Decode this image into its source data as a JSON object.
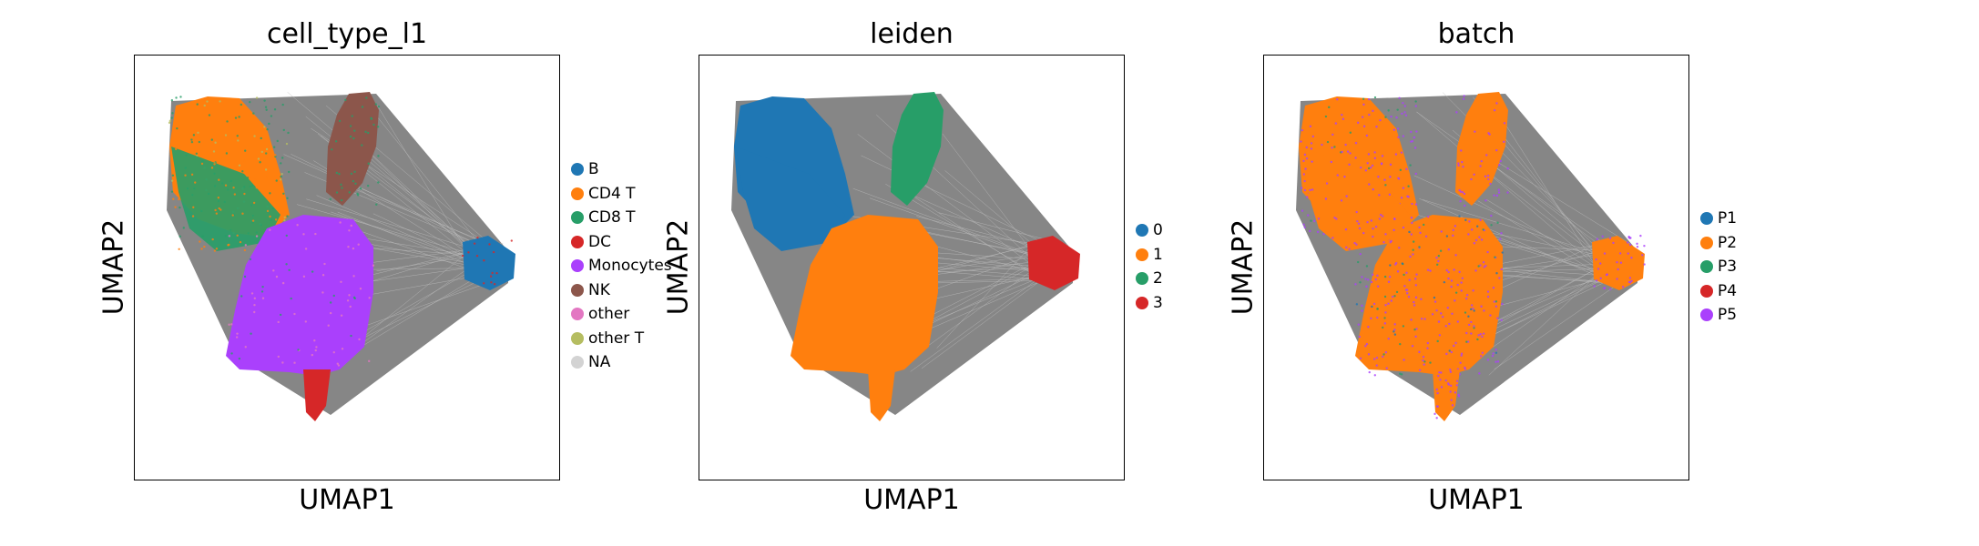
{
  "chart_data": [
    {
      "type": "scatter",
      "title": "cell_type_l1",
      "xlabel": "UMAP1",
      "ylabel": "UMAP2",
      "legend_position": "right",
      "categories": [
        {
          "name": "B",
          "color": "#1f77b4"
        },
        {
          "name": "CD4 T",
          "color": "#ff7f0e"
        },
        {
          "name": "CD8 T",
          "color": "#279e68"
        },
        {
          "name": "DC",
          "color": "#d62728"
        },
        {
          "name": "Monocytes",
          "color": "#aa40fc"
        },
        {
          "name": "NK",
          "color": "#8c564b"
        },
        {
          "name": "other",
          "color": "#e377c2"
        },
        {
          "name": "other T",
          "color": "#b5bd61"
        },
        {
          "name": "NA",
          "color": "#d3d3d3"
        }
      ]
    },
    {
      "type": "scatter",
      "title": "leiden",
      "xlabel": "UMAP1",
      "ylabel": "UMAP2",
      "legend_position": "right",
      "categories": [
        {
          "name": "0",
          "color": "#1f77b4"
        },
        {
          "name": "1",
          "color": "#ff7f0e"
        },
        {
          "name": "2",
          "color": "#279e68"
        },
        {
          "name": "3",
          "color": "#d62728"
        }
      ]
    },
    {
      "type": "scatter",
      "title": "batch",
      "xlabel": "UMAP1",
      "ylabel": "UMAP2",
      "legend_position": "right",
      "categories": [
        {
          "name": "P1",
          "color": "#1f77b4"
        },
        {
          "name": "P2",
          "color": "#ff7f0e"
        },
        {
          "name": "P3",
          "color": "#279e68"
        },
        {
          "name": "P4",
          "color": "#d62728"
        },
        {
          "name": "P5",
          "color": "#aa40fc"
        }
      ]
    }
  ],
  "edge_color": "#808080"
}
